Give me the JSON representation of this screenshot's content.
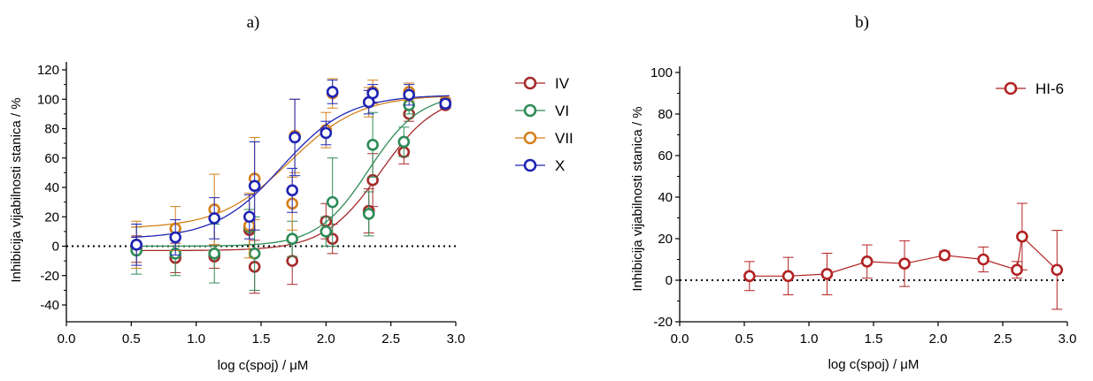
{
  "chart_data": [
    {
      "panel": "a)",
      "type": "scatter",
      "xlabel": "log c(spoj) / μM",
      "ylabel": "Inhibicija vijabilnosti stanica / %",
      "xlim": [
        0.0,
        3.0
      ],
      "ylim": [
        -50,
        125
      ],
      "xticks": [
        "0.0",
        "0.5",
        "1.0",
        "1.5",
        "2.0",
        "2.5",
        "3.0"
      ],
      "yticks": [
        "-40",
        "-20",
        "0",
        "20",
        "40",
        "60",
        "80",
        "100",
        "120"
      ],
      "reference_line_y": 0,
      "legend_position": "right",
      "series": [
        {
          "name": "IV",
          "color": "#a52a2a",
          "points": [
            [
              0.54,
              -2,
              9
            ],
            [
              0.84,
              -8,
              10
            ],
            [
              1.14,
              -7,
              8
            ],
            [
              1.41,
              11,
              10
            ],
            [
              1.45,
              -14,
              18
            ],
            [
              1.74,
              -10,
              16
            ],
            [
              2.0,
              17,
              12
            ],
            [
              2.05,
              5,
              10
            ],
            [
              2.33,
              24,
              15
            ],
            [
              2.36,
              45,
              18
            ],
            [
              2.6,
              64,
              8
            ],
            [
              2.64,
              90,
              5
            ],
            [
              2.92,
              96,
              2
            ]
          ],
          "fit": {
            "bottom": -3,
            "top": 104,
            "logEC50": 2.42,
            "hill": 2.0
          }
        },
        {
          "name": "VI",
          "color": "#2e8b57",
          "points": [
            [
              0.54,
              -3,
              16
            ],
            [
              0.84,
              -5,
              15
            ],
            [
              1.14,
              -5,
              20
            ],
            [
              1.41,
              13,
              12
            ],
            [
              1.45,
              -5,
              25
            ],
            [
              1.74,
              5,
              12
            ],
            [
              2.0,
              10,
              10
            ],
            [
              2.05,
              30,
              30
            ],
            [
              2.33,
              22,
              15
            ],
            [
              2.36,
              69,
              22
            ],
            [
              2.6,
              71,
              10
            ],
            [
              2.64,
              96,
              6
            ],
            [
              2.92,
              97,
              2
            ]
          ],
          "fit": {
            "bottom": 0,
            "top": 104,
            "logEC50": 2.33,
            "hill": 2.2
          }
        },
        {
          "name": "VII",
          "color": "#d4801c",
          "points": [
            [
              0.54,
              1,
              16
            ],
            [
              0.84,
              12,
              15
            ],
            [
              1.14,
              25,
              24
            ],
            [
              1.41,
              14,
              22
            ],
            [
              1.45,
              46,
              28
            ],
            [
              1.74,
              29,
              18
            ],
            [
              1.76,
              75,
              25
            ],
            [
              2.0,
              79,
              12
            ],
            [
              2.05,
              104,
              10
            ],
            [
              2.33,
              98,
              10
            ],
            [
              2.36,
              105,
              8
            ],
            [
              2.64,
              105,
              6
            ],
            [
              2.92,
              98,
              3
            ]
          ],
          "fit": {
            "bottom": 12,
            "top": 103,
            "logEC50": 1.72,
            "hill": 1.6
          }
        },
        {
          "name": "X",
          "color": "#1e24b4",
          "points": [
            [
              0.54,
              1,
              14
            ],
            [
              0.84,
              6,
              12
            ],
            [
              1.14,
              19,
              14
            ],
            [
              1.41,
              20,
              15
            ],
            [
              1.45,
              41,
              30
            ],
            [
              1.74,
              38,
              15
            ],
            [
              1.76,
              74,
              26
            ],
            [
              2.0,
              77,
              8
            ],
            [
              2.05,
              105,
              8
            ],
            [
              2.33,
              98,
              8
            ],
            [
              2.36,
              104,
              6
            ],
            [
              2.64,
              103,
              7
            ],
            [
              2.92,
              97,
              3
            ]
          ],
          "fit": {
            "bottom": 5,
            "top": 103,
            "logEC50": 1.66,
            "hill": 1.7
          }
        }
      ]
    },
    {
      "panel": "b)",
      "type": "line",
      "xlabel": "log c(spoj) / μM",
      "ylabel": "Inhibicija vijabilnosti stanica / %",
      "xlim": [
        0.0,
        3.0
      ],
      "ylim": [
        -20,
        100
      ],
      "xticks": [
        "0.0",
        "0.5",
        "1.0",
        "1.5",
        "2.0",
        "2.5",
        "3.0"
      ],
      "yticks": [
        "-20",
        "0",
        "20",
        "40",
        "60",
        "80",
        "100"
      ],
      "reference_line_y": 0,
      "legend_position": "top-right",
      "series": [
        {
          "name": "HI-6",
          "color": "#b22222",
          "points": [
            [
              0.54,
              2,
              7
            ],
            [
              0.84,
              2,
              9
            ],
            [
              1.14,
              3,
              10
            ],
            [
              1.45,
              9,
              8
            ],
            [
              1.74,
              8,
              11
            ],
            [
              2.05,
              12,
              2
            ],
            [
              2.35,
              10,
              6
            ],
            [
              2.61,
              5,
              4
            ],
            [
              2.65,
              21,
              16
            ],
            [
              2.92,
              5,
              19
            ]
          ]
        }
      ]
    }
  ]
}
